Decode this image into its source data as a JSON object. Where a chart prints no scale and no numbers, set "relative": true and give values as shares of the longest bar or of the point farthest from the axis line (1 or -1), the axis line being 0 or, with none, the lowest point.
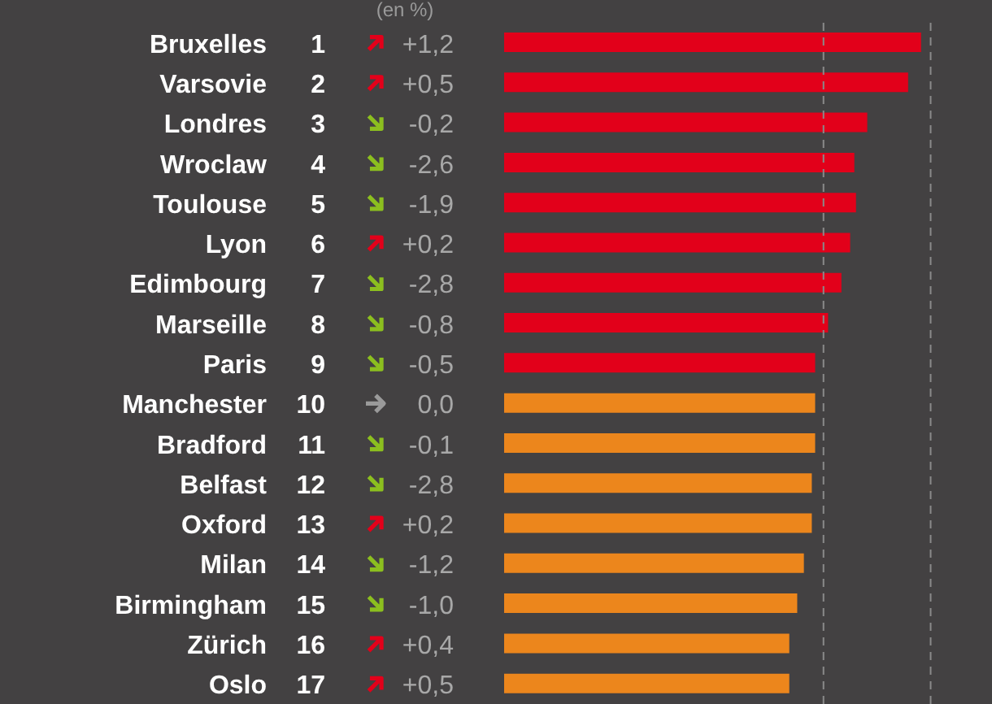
{
  "chart_data": {
    "type": "bar",
    "orientation": "horizontal",
    "relative": true,
    "categories": [
      "Bruxelles",
      "Varsovie",
      "Londres",
      "Wroclaw",
      "Toulouse",
      "Lyon",
      "Edimbourg",
      "Marseille",
      "Paris",
      "Manchester",
      "Bradford",
      "Belfast",
      "Oxford",
      "Milan",
      "Birmingham",
      "Zürich",
      "Oslo"
    ],
    "values": [
      1,
      0.969,
      0.871,
      0.84,
      0.844,
      0.83,
      0.809,
      0.777,
      0.746,
      0.746,
      0.746,
      0.738,
      0.738,
      0.719,
      0.703,
      0.684,
      0.684
    ],
    "colors": [
      "#e2001a",
      "#e2001a",
      "#e2001a",
      "#e2001a",
      "#e2001a",
      "#e2001a",
      "#e2001a",
      "#e2001a",
      "#e2001a",
      "#ec861c",
      "#ec861c",
      "#ec861c",
      "#ec861c",
      "#ec861c",
      "#ec861c",
      "#ec861c",
      "#ec861c"
    ],
    "ref_lines": [
      {
        "axis": "x",
        "value": 0.766,
        "color": "#8a8a8a",
        "line_style": "dashed"
      },
      {
        "axis": "x",
        "value": 1.023,
        "color": "#8a8a8a",
        "line_style": "dashed"
      }
    ],
    "annotations": [
      "(en %)",
      "1",
      "2",
      "3",
      "4",
      "5",
      "6",
      "7",
      "8",
      "9",
      "10",
      "11",
      "12",
      "13",
      "14",
      "15",
      "16",
      "17",
      "+1,2",
      "+0,5",
      "-0,2",
      "-2,6",
      "-1,9",
      "+0,2",
      "-2,8",
      "-0,8",
      "-0,5",
      "0,0",
      "-0,1",
      "-2,8",
      "+0,2",
      "-1,2",
      "-1,0",
      "+0,4",
      "+0,5"
    ]
  }
}
